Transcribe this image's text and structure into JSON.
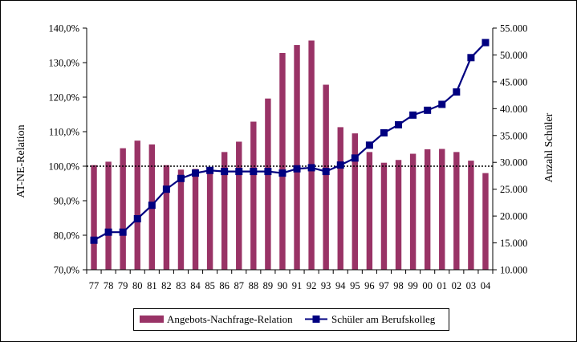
{
  "chart_data": {
    "type": "bar+line",
    "categories": [
      "77",
      "78",
      "79",
      "80",
      "81",
      "82",
      "83",
      "84",
      "85",
      "86",
      "87",
      "88",
      "89",
      "90",
      "91",
      "92",
      "93",
      "94",
      "95",
      "96",
      "97",
      "98",
      "99",
      "00",
      "01",
      "02",
      "03",
      "04"
    ],
    "series": [
      {
        "name": "Angebots-Nachfrage-Relation",
        "type": "bar",
        "axis": "left",
        "color": "#993366",
        "values": [
          100.3,
          101.3,
          105.2,
          107.4,
          106.3,
          100.3,
          99.0,
          99.2,
          98.8,
          104.1,
          107.1,
          112.9,
          119.6,
          132.8,
          135.1,
          136.4,
          123.6,
          111.3,
          109.5,
          104.1,
          101.0,
          101.8,
          103.6,
          104.9,
          105.0,
          104.1,
          101.6,
          98.0
        ]
      },
      {
        "name": "Schüler am Berufskolleg",
        "type": "line",
        "axis": "right",
        "color": "#000080",
        "values": [
          15500,
          17000,
          17000,
          19500,
          22000,
          25000,
          27000,
          28000,
          28500,
          28300,
          28300,
          28300,
          28300,
          28000,
          28800,
          29000,
          28300,
          29500,
          30800,
          33200,
          35500,
          37000,
          38800,
          39700,
          40800,
          43100,
          49500,
          52300
        ]
      }
    ],
    "y_left": {
      "label": "AT-NE-Relation",
      "min": 70,
      "max": 140,
      "step": 10,
      "tick_labels": [
        "70,0%",
        "80,0%",
        "90,0%",
        "100,0%",
        "110,0%",
        "120,0%",
        "130,0%",
        "140,0%"
      ]
    },
    "y_right": {
      "label": "Anzahl Schüler",
      "min": 10000,
      "max": 55000,
      "step": 5000,
      "tick_labels": [
        "10.000",
        "15.000",
        "20.000",
        "25.000",
        "30.000",
        "35.000",
        "40.000",
        "45.000",
        "50.000",
        "55.000"
      ]
    },
    "reference_line": {
      "value": 100,
      "axis": "left",
      "style": "dotted"
    },
    "legend": {
      "placement": "bottom",
      "entries": [
        "Angebots-Nachfrage-Relation",
        "Schüler am Berufskolleg"
      ]
    },
    "grid": false
  }
}
